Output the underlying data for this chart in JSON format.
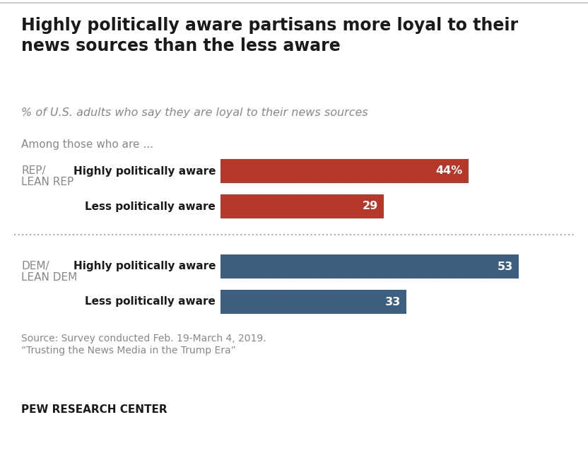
{
  "title": "Highly politically aware partisans more loyal to their\nnews sources than the less aware",
  "subtitle": "% of U.S. adults who say they are loyal to their news sources",
  "group_label": "Among those who are ...",
  "rep_label_line1": "REP/",
  "rep_label_line2": "LEAN REP",
  "dem_label_line1": "DEM/",
  "dem_label_line2": "LEAN DEM",
  "bar_labels": [
    "Highly politically aware",
    "Less politically aware"
  ],
  "rep_values": [
    44,
    29
  ],
  "dem_values": [
    53,
    33
  ],
  "rep_value_labels": [
    "44%",
    "29"
  ],
  "dem_value_labels": [
    "53",
    "33"
  ],
  "rep_color": "#b5392a",
  "dem_color": "#3d6080",
  "source_text1": "Source: Survey conducted Feb. 19-March 4, 2019.",
  "source_text2": "“Trusting the News Media in the Trump Era”",
  "footer": "PEW RESEARCH CENTER",
  "bar_max": 60,
  "title_fontsize": 17,
  "subtitle_fontsize": 11.5,
  "group_label_fontsize": 11,
  "bar_label_fontsize": 11,
  "value_fontsize": 11.5,
  "source_fontsize": 10,
  "footer_fontsize": 11,
  "background_color": "#ffffff",
  "text_color": "#1a1a1a",
  "gray_color": "#888888",
  "separator_color": "#aaaaaa"
}
